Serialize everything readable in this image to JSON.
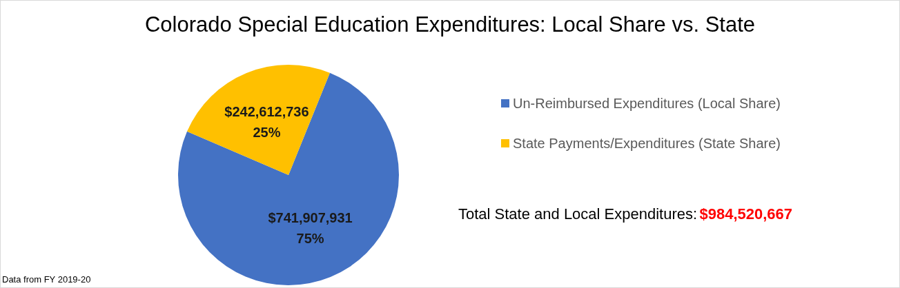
{
  "chart_data": {
    "type": "pie",
    "title": "Colorado Special Education Expenditures: Local Share vs. State",
    "categories": [
      "Un-Reimbursed Expenditures (Local Share)",
      "State Payments/Expenditures (State Share)"
    ],
    "values": [
      741907931,
      242612736
    ],
    "colors": [
      "#4472c4",
      "#ffc000"
    ],
    "value_labels": [
      "$741,907,931\n75%",
      "$242,612,736\n25%"
    ],
    "legend": "right",
    "annotations": [
      "Total State and Local Expenditures:",
      "$984,520,667",
      "Data from FY 2019-20"
    ]
  }
}
